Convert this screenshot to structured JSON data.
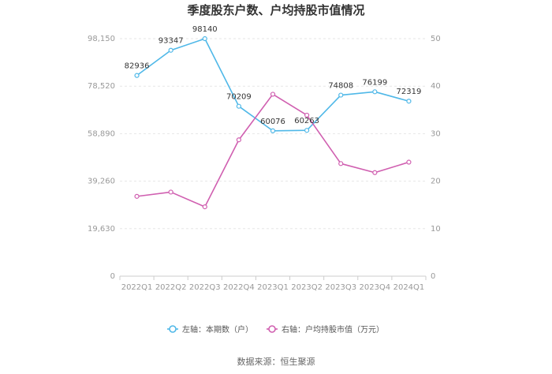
{
  "chart_data": {
    "type": "line",
    "title": "季度股东户数、户均持股市值情况",
    "categories": [
      "2022Q1",
      "2022Q2",
      "2022Q3",
      "2022Q4",
      "2023Q1",
      "2023Q2",
      "2023Q3",
      "2023Q4",
      "2024Q1"
    ],
    "left_axis": {
      "ticks": [
        "0",
        "19,630",
        "39,260",
        "58,890",
        "78,520",
        "98,150"
      ],
      "min": 0,
      "max": 98150
    },
    "right_axis": {
      "ticks": [
        "0",
        "10",
        "20",
        "30",
        "40",
        "50"
      ],
      "min": 0,
      "max": 50
    },
    "series": [
      {
        "name": "左轴：本期数（户）",
        "axis": "left",
        "color": "#4fb8e8",
        "values": [
          82936,
          93347,
          98140,
          70209,
          60076,
          60263,
          74808,
          76199,
          72319
        ],
        "labels": [
          "82936",
          "93347",
          "98140",
          "70209",
          "60076",
          "60263",
          "74808",
          "76199",
          "72319"
        ]
      },
      {
        "name": "右轴：户均持股市值（万元）",
        "axis": "right",
        "color": "#d05fb0",
        "values": [
          16.8,
          17.7,
          14.6,
          28.7,
          38.3,
          33.9,
          23.7,
          21.8,
          24.0
        ]
      }
    ],
    "grid": true,
    "legend": "bottom",
    "source": "数据来源：恒生聚源"
  }
}
